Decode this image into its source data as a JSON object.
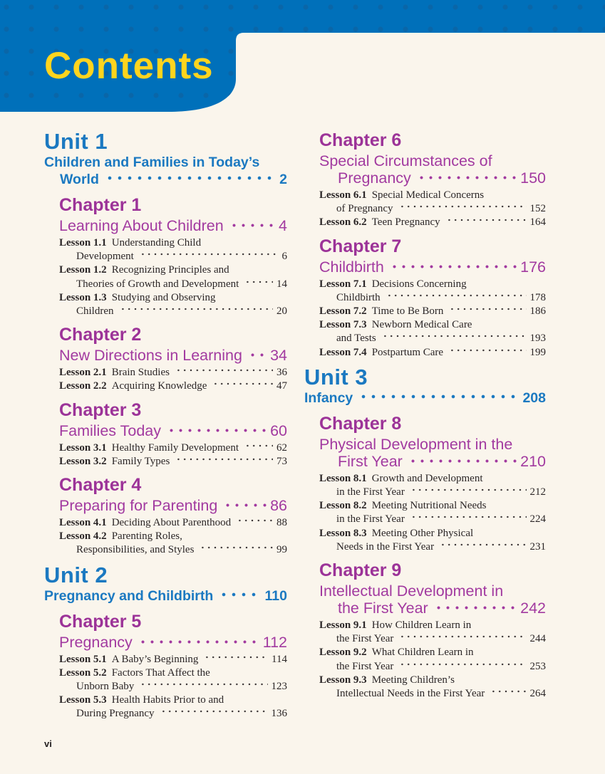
{
  "header": {
    "title": "Contents",
    "banner_color": "#0070ba",
    "banner_dot_color": "#0a66a8",
    "title_color": "#ffd41e"
  },
  "footer": {
    "folio": "vi"
  },
  "colors": {
    "background": "#faf5ec",
    "unit_blue": "#1b79c1",
    "chapter_purple": "#9c3398",
    "chapter_title_purple": "#a23aa0",
    "lesson_text": "#2b2627"
  },
  "toc": {
    "columns": [
      {
        "side": "left",
        "blocks": [
          {
            "type": "unit",
            "heading": "Unit 1",
            "lines": [
              {
                "text": "Children and Families in Today’s"
              },
              {
                "text": "World",
                "indent": true,
                "page": "2"
              }
            ]
          },
          {
            "type": "chapter",
            "heading": "Chapter 1",
            "title_lines": [
              {
                "text": "Learning About Children",
                "page": "4"
              }
            ],
            "lessons": [
              {
                "label": "Lesson 1.1",
                "lines": [
                  {
                    "text": "Understanding Child"
                  },
                  {
                    "text": "Development",
                    "indent": true,
                    "page": "6"
                  }
                ]
              },
              {
                "label": "Lesson 1.2",
                "lines": [
                  {
                    "text": "Recognizing Principles and"
                  },
                  {
                    "text": "Theories of Growth and Development",
                    "indent": true,
                    "page": "14"
                  }
                ]
              },
              {
                "label": "Lesson 1.3",
                "lines": [
                  {
                    "text": "Studying and Observing"
                  },
                  {
                    "text": "Children",
                    "indent": true,
                    "page": "20"
                  }
                ]
              }
            ]
          },
          {
            "type": "chapter",
            "heading": "Chapter 2",
            "title_lines": [
              {
                "text": "New Directions in Learning",
                "page": "34"
              }
            ],
            "lessons": [
              {
                "label": "Lesson 2.1",
                "lines": [
                  {
                    "text": "Brain Studies",
                    "page": "36"
                  }
                ]
              },
              {
                "label": "Lesson 2.2",
                "lines": [
                  {
                    "text": "Acquiring Knowledge",
                    "page": "47"
                  }
                ]
              }
            ]
          },
          {
            "type": "chapter",
            "heading": "Chapter 3",
            "title_lines": [
              {
                "text": "Families Today",
                "page": "60"
              }
            ],
            "lessons": [
              {
                "label": "Lesson 3.1",
                "lines": [
                  {
                    "text": "Healthy Family Development",
                    "page": "62"
                  }
                ]
              },
              {
                "label": "Lesson 3.2",
                "lines": [
                  {
                    "text": "Family Types",
                    "page": "73"
                  }
                ]
              }
            ]
          },
          {
            "type": "chapter",
            "heading": "Chapter 4",
            "title_lines": [
              {
                "text": "Preparing for Parenting",
                "page": "86"
              }
            ],
            "lessons": [
              {
                "label": "Lesson 4.1",
                "lines": [
                  {
                    "text": "Deciding About Parenthood",
                    "page": "88"
                  }
                ]
              },
              {
                "label": "Lesson 4.2",
                "lines": [
                  {
                    "text": "Parenting Roles,"
                  },
                  {
                    "text": "Responsibilities, and Styles",
                    "indent": true,
                    "page": "99"
                  }
                ]
              }
            ]
          },
          {
            "type": "unit",
            "heading": "Unit 2",
            "lines": [
              {
                "text": "Pregnancy and Childbirth",
                "page": "110"
              }
            ]
          },
          {
            "type": "chapter",
            "heading": "Chapter 5",
            "title_lines": [
              {
                "text": "Pregnancy",
                "page": "112"
              }
            ],
            "lessons": [
              {
                "label": "Lesson 5.1",
                "lines": [
                  {
                    "text": "A Baby’s Beginning",
                    "page": "114"
                  }
                ]
              },
              {
                "label": "Lesson 5.2",
                "lines": [
                  {
                    "text": "Factors That Affect the"
                  },
                  {
                    "text": "Unborn Baby",
                    "indent": true,
                    "page": "123"
                  }
                ]
              },
              {
                "label": "Lesson 5.3",
                "lines": [
                  {
                    "text": "Health Habits Prior to and"
                  },
                  {
                    "text": "During Pregnancy",
                    "indent": true,
                    "page": "136"
                  }
                ]
              }
            ]
          }
        ]
      },
      {
        "side": "right",
        "blocks": [
          {
            "type": "chapter",
            "heading": "Chapter 6",
            "title_lines": [
              {
                "text": "Special Circumstances of"
              },
              {
                "text": "Pregnancy",
                "indent": true,
                "page": "150"
              }
            ],
            "lessons": [
              {
                "label": "Lesson 6.1",
                "lines": [
                  {
                    "text": "Special Medical Concerns"
                  },
                  {
                    "text": "of Pregnancy",
                    "indent": true,
                    "page": "152"
                  }
                ]
              },
              {
                "label": "Lesson 6.2",
                "lines": [
                  {
                    "text": "Teen Pregnancy",
                    "page": "164"
                  }
                ]
              }
            ]
          },
          {
            "type": "chapter",
            "heading": "Chapter 7",
            "title_lines": [
              {
                "text": "Childbirth",
                "page": "176"
              }
            ],
            "lessons": [
              {
                "label": "Lesson 7.1",
                "lines": [
                  {
                    "text": "Decisions Concerning"
                  },
                  {
                    "text": "Childbirth",
                    "indent": true,
                    "page": "178"
                  }
                ]
              },
              {
                "label": "Lesson 7.2",
                "lines": [
                  {
                    "text": "Time to Be Born",
                    "page": "186"
                  }
                ]
              },
              {
                "label": "Lesson 7.3",
                "lines": [
                  {
                    "text": "Newborn Medical Care"
                  },
                  {
                    "text": "and Tests",
                    "indent": true,
                    "page": "193"
                  }
                ]
              },
              {
                "label": "Lesson 7.4",
                "lines": [
                  {
                    "text": "Postpartum Care",
                    "page": "199"
                  }
                ]
              }
            ]
          },
          {
            "type": "unit",
            "heading": "Unit 3",
            "lines": [
              {
                "text": "Infancy",
                "page": "208"
              }
            ]
          },
          {
            "type": "chapter",
            "heading": "Chapter 8",
            "title_lines": [
              {
                "text": "Physical Development in the"
              },
              {
                "text": "First Year",
                "indent": true,
                "page": "210"
              }
            ],
            "lessons": [
              {
                "label": "Lesson 8.1",
                "lines": [
                  {
                    "text": "Growth and Development"
                  },
                  {
                    "text": "in the First Year",
                    "indent": true,
                    "page": "212"
                  }
                ]
              },
              {
                "label": "Lesson 8.2",
                "lines": [
                  {
                    "text": "Meeting Nutritional Needs"
                  },
                  {
                    "text": "in the First Year",
                    "indent": true,
                    "page": "224"
                  }
                ]
              },
              {
                "label": "Lesson 8.3",
                "lines": [
                  {
                    "text": "Meeting Other Physical"
                  },
                  {
                    "text": "Needs in the First Year",
                    "indent": true,
                    "page": "231"
                  }
                ]
              }
            ]
          },
          {
            "type": "chapter",
            "heading": "Chapter 9",
            "title_lines": [
              {
                "text": "Intellectual Development in"
              },
              {
                "text": "the First Year",
                "indent": true,
                "page": "242"
              }
            ],
            "lessons": [
              {
                "label": "Lesson 9.1",
                "lines": [
                  {
                    "text": "How Children Learn in"
                  },
                  {
                    "text": "the First Year",
                    "indent": true,
                    "page": "244"
                  }
                ]
              },
              {
                "label": "Lesson 9.2",
                "lines": [
                  {
                    "text": "What Children Learn in"
                  },
                  {
                    "text": "the First Year",
                    "indent": true,
                    "page": "253"
                  }
                ]
              },
              {
                "label": "Lesson 9.3",
                "lines": [
                  {
                    "text": "Meeting Children’s"
                  },
                  {
                    "text": "Intellectual Needs in the First Year",
                    "indent": true,
                    "page": "264"
                  }
                ]
              }
            ]
          }
        ]
      }
    ]
  }
}
